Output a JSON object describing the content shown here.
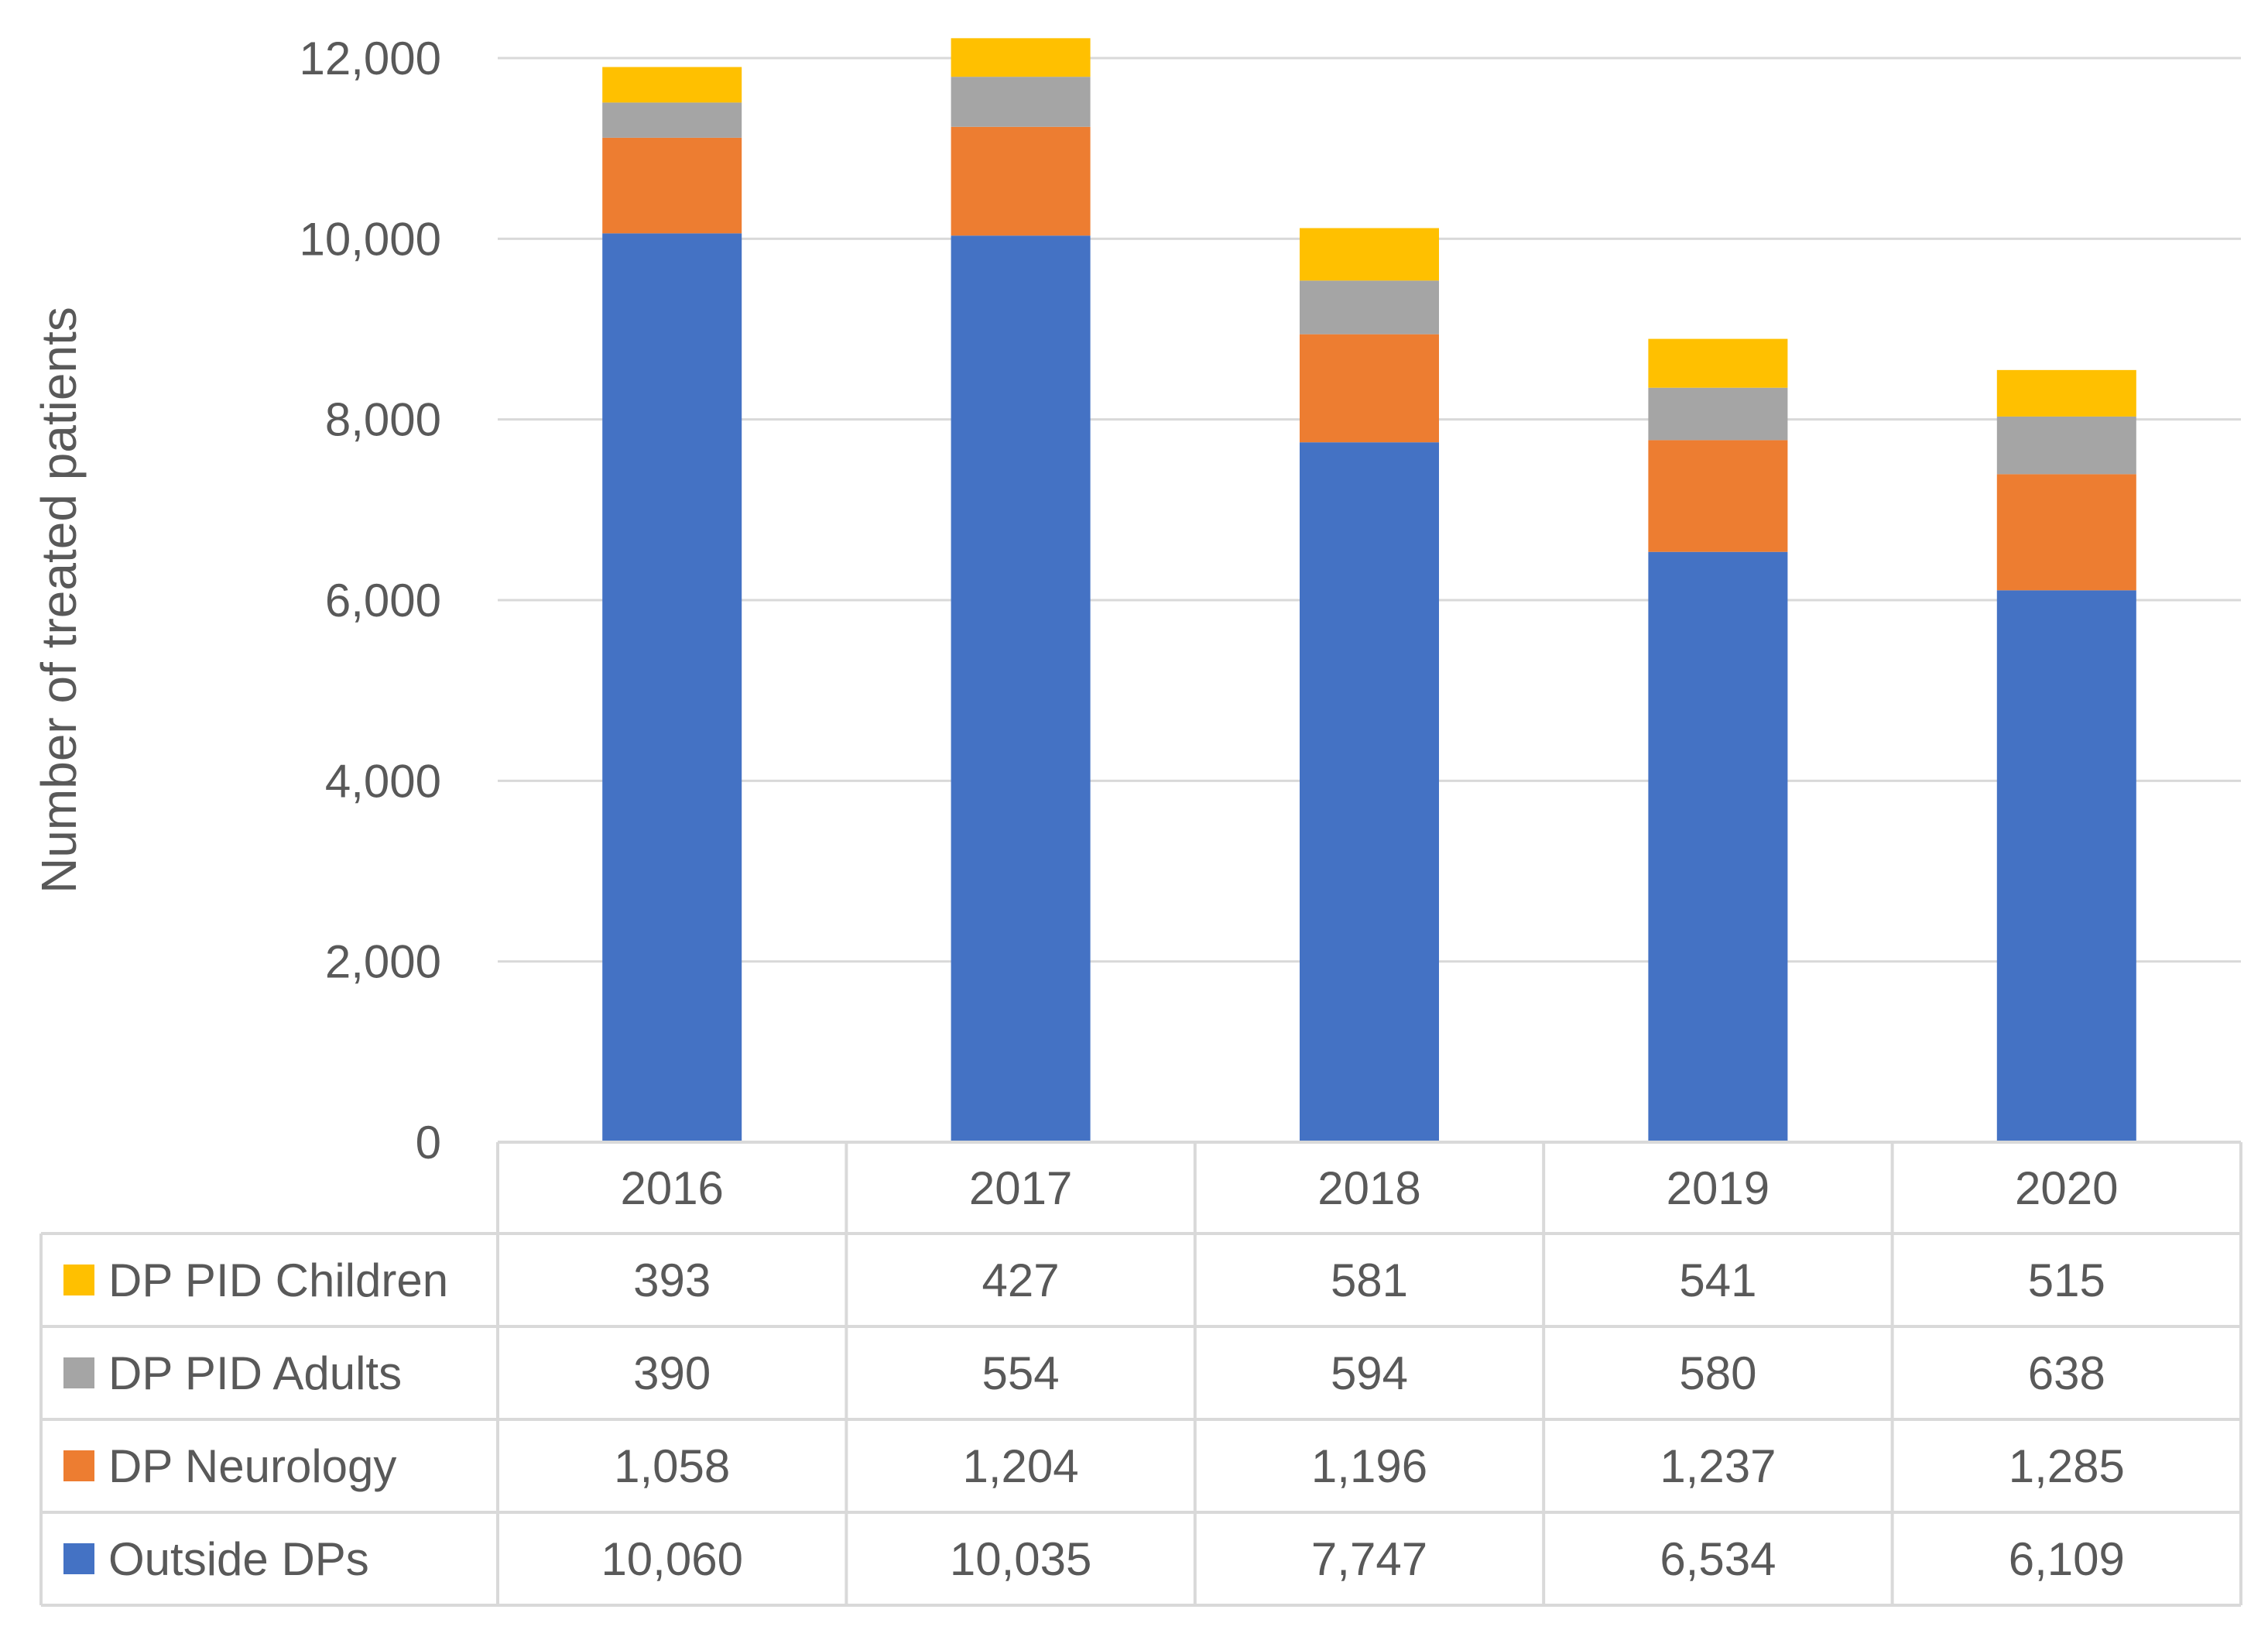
{
  "chart_data": {
    "type": "bar",
    "stacked": true,
    "title": "",
    "xlabel": "",
    "ylabel": "Number of treated patients",
    "ylim": [
      0,
      12000
    ],
    "yticks": [
      0,
      2000,
      4000,
      6000,
      8000,
      10000,
      12000
    ],
    "ytick_labels": [
      "0",
      "2,000",
      "4,000",
      "6,000",
      "8,000",
      "10,000",
      "12,000"
    ],
    "grid": true,
    "legend": "data-table-left",
    "categories": [
      "2016",
      "2017",
      "2018",
      "2019",
      "2020"
    ],
    "series": [
      {
        "name": "Outside DPs",
        "color": "#4472C4",
        "values": [
          10060,
          10035,
          7747,
          6534,
          6109
        ],
        "labels": [
          "10,060",
          "10,035",
          "7,747",
          "6,534",
          "6,109"
        ]
      },
      {
        "name": "DP Neurology",
        "color": "#ED7D31",
        "values": [
          1058,
          1204,
          1196,
          1237,
          1285
        ],
        "labels": [
          "1,058",
          "1,204",
          "1,196",
          "1,237",
          "1,285"
        ]
      },
      {
        "name": "DP PID Adults",
        "color": "#A5A5A5",
        "values": [
          390,
          554,
          594,
          580,
          638
        ],
        "labels": [
          "390",
          "554",
          "594",
          "580",
          "638"
        ]
      },
      {
        "name": "DP PID Children",
        "color": "#FFC000",
        "values": [
          393,
          427,
          581,
          541,
          515
        ],
        "labels": [
          "393",
          "427",
          "581",
          "541",
          "515"
        ]
      }
    ],
    "table_row_order": [
      "DP PID Children",
      "DP PID Adults",
      "DP Neurology",
      "Outside DPs"
    ],
    "colors": {
      "gridline": "#D9D9D9",
      "table_border": "#D9D9D9",
      "text": "#595959"
    }
  }
}
